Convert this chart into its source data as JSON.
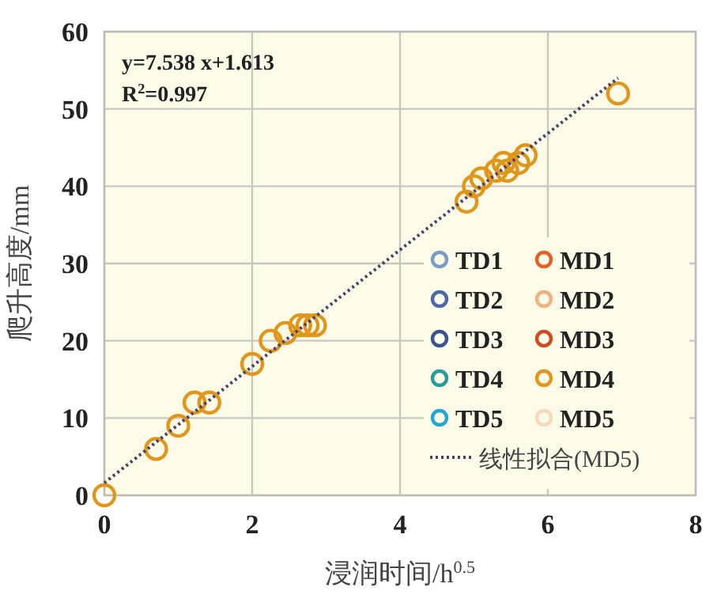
{
  "chart_data": {
    "type": "scatter",
    "xlabel": "浸润时间/h$^{0.5}$",
    "ylabel": "爬升高度/mm",
    "annotations": [
      "y=7.538 x+1.613",
      "R$^{2}$=0.997"
    ],
    "xlim": [
      0,
      8
    ],
    "xticks": [
      0,
      2,
      4,
      6,
      8
    ],
    "ylim": [
      0,
      60
    ],
    "yticks": [
      0,
      10,
      20,
      30,
      40,
      50,
      60
    ],
    "grid": true,
    "legend": "bottom right",
    "marker": "circle",
    "series": [
      {
        "name": "TD1",
        "color": "#7a9cc8"
      },
      {
        "name": "MD1",
        "color": "#e0602a"
      },
      {
        "name": "TD2",
        "color": "#4a6aa8"
      },
      {
        "name": "MD2",
        "color": "#f0b080"
      },
      {
        "name": "TD3",
        "color": "#3b5590"
      },
      {
        "name": "MD3",
        "color": "#d04a20"
      },
      {
        "name": "TD4",
        "color": "#2a9a9a"
      },
      {
        "name": "MD4",
        "color": "#e0961a",
        "x": [
          0,
          0.7,
          1.0,
          1.22,
          1.42,
          2.0,
          2.25,
          2.45,
          2.65,
          2.75,
          2.85,
          4.9,
          5.0,
          5.1,
          5.3,
          5.4,
          5.45,
          5.6,
          5.7,
          6.95
        ],
        "values": [
          0,
          6,
          9,
          12,
          12,
          17,
          20,
          21,
          22,
          22,
          22,
          38,
          40,
          41,
          42,
          43,
          42,
          43,
          44,
          52
        ]
      },
      {
        "name": "TD5",
        "color": "#20a8d0"
      },
      {
        "name": "MD5",
        "color": "#f8d8b8"
      },
      {
        "name": "线性拟合(MD5)",
        "type": "line",
        "line_style": "dotted",
        "marker": "none",
        "color": "#4b3f6b",
        "x": [
          0,
          6.95
        ],
        "values": [
          1.6,
          54.0
        ]
      }
    ]
  }
}
